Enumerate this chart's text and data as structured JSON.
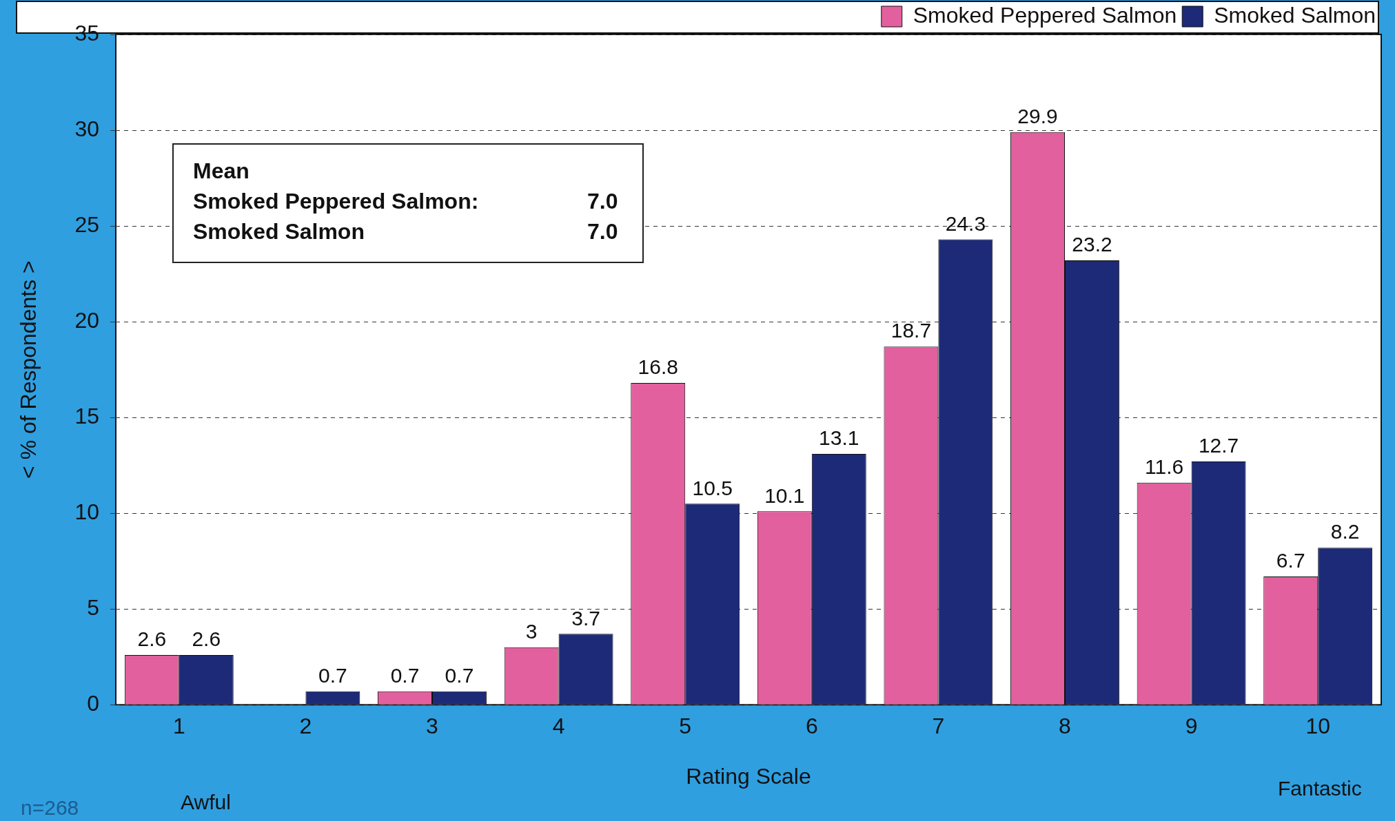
{
  "chart_data": {
    "type": "bar",
    "xlabel": "Rating Scale",
    "ylabel": "< % of Respondents >",
    "categories": [
      "1",
      "2",
      "3",
      "4",
      "5",
      "6",
      "7",
      "8",
      "9",
      "10"
    ],
    "series": [
      {
        "name": "Smoked Peppered Salmon",
        "color": "#e2609e",
        "values": [
          2.6,
          null,
          0.7,
          3,
          16.8,
          10.1,
          18.7,
          29.9,
          11.6,
          6.7
        ]
      },
      {
        "name": "Smoked Salmon",
        "color": "#1c2a78",
        "values": [
          2.6,
          0.7,
          0.7,
          3.7,
          10.5,
          13.1,
          24.3,
          23.2,
          12.7,
          8.2
        ]
      }
    ],
    "ylim": [
      0,
      35
    ],
    "yticks": [
      0,
      5,
      10,
      15,
      20,
      25,
      30,
      35
    ],
    "grid": "y",
    "legend": "top right",
    "data_labels": true,
    "annotations": [
      "n=268",
      "Awful",
      "Fantastic",
      "Mean",
      "Smoked Peppered Salmon:",
      "7.0",
      "Smoked Salmon",
      "7.0"
    ]
  }
}
